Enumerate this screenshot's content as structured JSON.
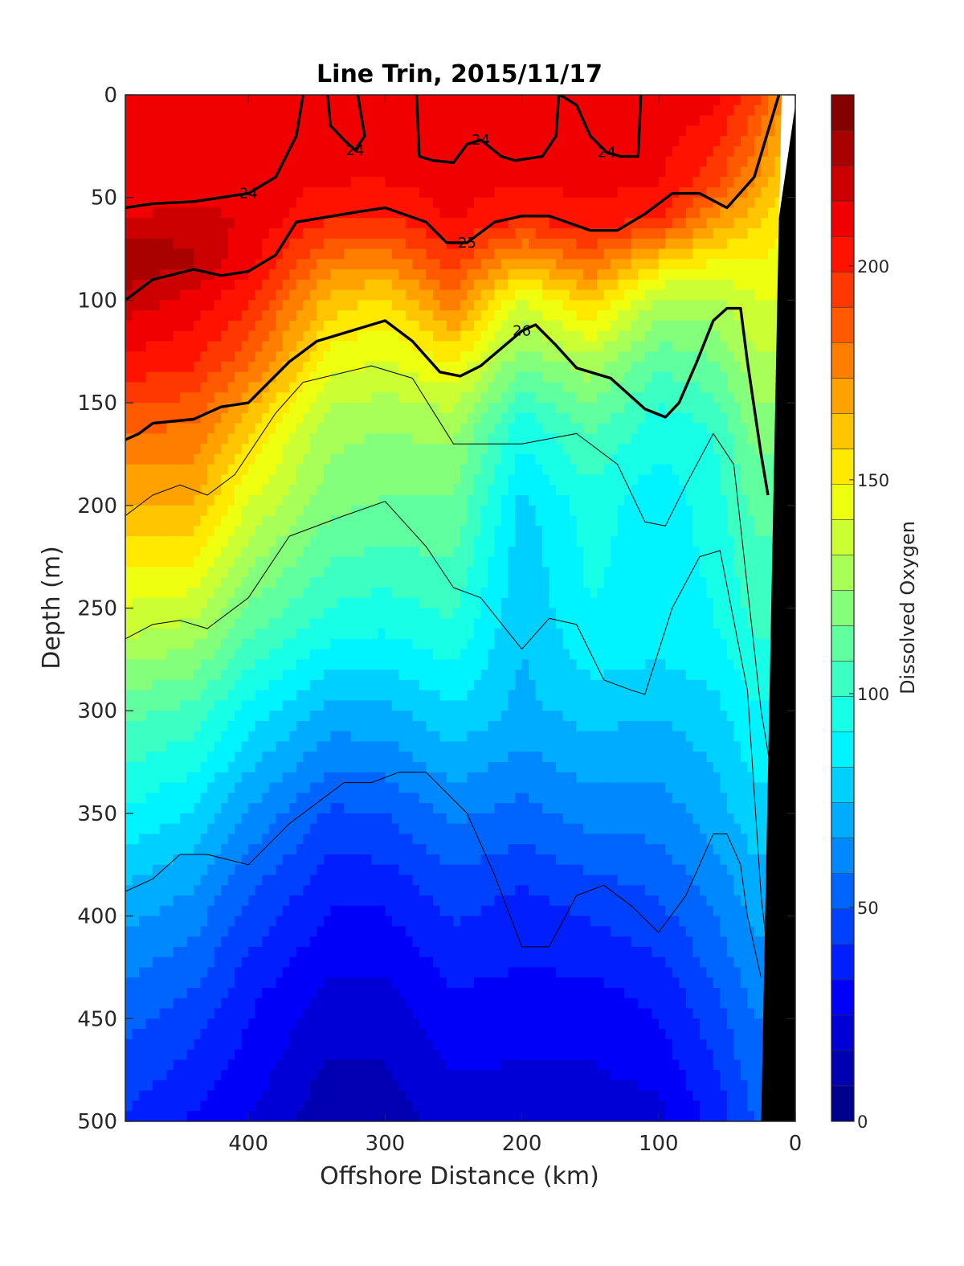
{
  "chart_data": {
    "type": "heatmap",
    "title": "Line Trin, 2015/11/17",
    "xlabel": "Offshore Distance (km)",
    "ylabel": "Depth (m)",
    "xlim": [
      490,
      0
    ],
    "ylim": [
      500,
      0
    ],
    "x_ticks": [
      400,
      300,
      200,
      100,
      0
    ],
    "y_ticks": [
      0,
      50,
      100,
      150,
      200,
      250,
      300,
      350,
      400,
      450,
      500
    ],
    "colorbar": {
      "label": "Dissolved Oxygen",
      "range": [
        0,
        240
      ],
      "ticks": [
        0,
        50,
        100,
        150,
        200
      ],
      "levels": 24,
      "colors": [
        "#00008f",
        "#0000b3",
        "#0000d6",
        "#0000fa",
        "#001eff",
        "#0041ff",
        "#0065ff",
        "#0089ff",
        "#00acff",
        "#00d0ff",
        "#00f4ff",
        "#18ffe7",
        "#3cffc3",
        "#60ff9f",
        "#83ff7c",
        "#a7ff58",
        "#cbff34",
        "#efff10",
        "#ffe900",
        "#ffc500",
        "#ffa200",
        "#ff7e00",
        "#ff5a00",
        "#ff3700",
        "#ff1300",
        "#f00000",
        "#cc0000",
        "#a90000",
        "#850000"
      ]
    },
    "oxygen_profiles": [
      {
        "x": 490,
        "depth": [
          0,
          40,
          60,
          80,
          100,
          130,
          160,
          200,
          260,
          300,
          350,
          390,
          440,
          500
        ],
        "oxygen": [
          210,
          208,
          215,
          232,
          220,
          205,
          185,
          165,
          135,
          110,
          90,
          72,
          55,
          40
        ]
      },
      {
        "x": 440,
        "depth": [
          0,
          40,
          60,
          80,
          100,
          130,
          160,
          200,
          260,
          300,
          350,
          390,
          440,
          500
        ],
        "oxygen": [
          210,
          208,
          218,
          225,
          212,
          200,
          182,
          165,
          130,
          105,
          82,
          65,
          48,
          32
        ]
      },
      {
        "x": 400,
        "depth": [
          0,
          40,
          60,
          80,
          100,
          130,
          160,
          200,
          260,
          300,
          350,
          390,
          440,
          500
        ],
        "oxygen": [
          212,
          210,
          214,
          210,
          200,
          185,
          160,
          140,
          110,
          88,
          65,
          50,
          35,
          25
        ]
      },
      {
        "x": 340,
        "depth": [
          0,
          40,
          60,
          80,
          100,
          130,
          160,
          200,
          260,
          300,
          350,
          390,
          440,
          500
        ],
        "oxygen": [
          212,
          208,
          200,
          180,
          162,
          145,
          128,
          118,
          95,
          72,
          48,
          35,
          22,
          10
        ]
      },
      {
        "x": 300,
        "depth": [
          0,
          40,
          60,
          80,
          100,
          130,
          160,
          200,
          260,
          300,
          350,
          390,
          440,
          500
        ],
        "oxygen": [
          212,
          208,
          198,
          178,
          155,
          140,
          125,
          115,
          92,
          72,
          50,
          35,
          22,
          12
        ]
      },
      {
        "x": 250,
        "depth": [
          0,
          40,
          60,
          80,
          100,
          130,
          160,
          200,
          260,
          300,
          350,
          390,
          440,
          500
        ],
        "oxygen": [
          212,
          210,
          208,
          195,
          180,
          150,
          128,
          115,
          98,
          82,
          60,
          45,
          32,
          20
        ]
      },
      {
        "x": 200,
        "depth": [
          0,
          40,
          60,
          80,
          100,
          130,
          160,
          200,
          260,
          300,
          350,
          390,
          440,
          500
        ],
        "oxygen": [
          212,
          208,
          200,
          170,
          140,
          118,
          95,
          80,
          75,
          72,
          55,
          40,
          30,
          20
        ]
      },
      {
        "x": 150,
        "depth": [
          0,
          40,
          60,
          80,
          100,
          130,
          160,
          200,
          260,
          300,
          350,
          390,
          440,
          500
        ],
        "oxygen": [
          212,
          210,
          205,
          185,
          160,
          130,
          110,
          95,
          90,
          78,
          62,
          45,
          30,
          20
        ]
      },
      {
        "x": 100,
        "depth": [
          0,
          40,
          60,
          80,
          100,
          130,
          160,
          200,
          260,
          300,
          350,
          390,
          440,
          500
        ],
        "oxygen": [
          212,
          208,
          200,
          160,
          130,
          110,
          95,
          85,
          88,
          75,
          62,
          50,
          35,
          22
        ]
      },
      {
        "x": 60,
        "depth": [
          0,
          40,
          60,
          80,
          100,
          130,
          160,
          200,
          260,
          300,
          350,
          390,
          440,
          500
        ],
        "oxygen": [
          210,
          195,
          175,
          150,
          130,
          115,
          100,
          95,
          90,
          80,
          70,
          60,
          48,
          35
        ]
      },
      {
        "x": 30,
        "depth": [
          0,
          40,
          60,
          80,
          100,
          130,
          160,
          200,
          260,
          300,
          350,
          390,
          440,
          500
        ],
        "oxygen": [
          195,
          175,
          160,
          150,
          140,
          130,
          120,
          110,
          100,
          90,
          80,
          70,
          60,
          50
        ]
      },
      {
        "x": 10,
        "depth": [
          0,
          40,
          60,
          80,
          100,
          130,
          160,
          200,
          260,
          300,
          350,
          390,
          440,
          500
        ],
        "oxygen": [
          175,
          160,
          150,
          145,
          140,
          130,
          120,
          110,
          100,
          90,
          80,
          70,
          60,
          50
        ]
      }
    ],
    "density_contours": [
      {
        "level": 24,
        "labeled": true,
        "bold": true,
        "x": [
          490,
          470,
          440,
          420,
          400,
          380,
          365,
          360
        ],
        "depth": [
          55,
          53,
          52,
          50,
          48,
          40,
          20,
          0
        ]
      },
      {
        "level": 24,
        "labeled": true,
        "bold": true,
        "x": [
          342,
          340,
          330,
          322,
          320,
          315,
          320
        ],
        "depth": [
          0,
          15,
          22,
          27,
          25,
          20,
          0
        ]
      },
      {
        "level": 24,
        "labeled": true,
        "bold": true,
        "x": [
          277,
          275,
          265,
          250,
          240,
          230,
          215,
          205,
          185,
          175,
          173
        ],
        "depth": [
          0,
          30,
          32,
          33,
          24,
          22,
          30,
          32,
          30,
          20,
          0
        ]
      },
      {
        "level": 24,
        "labeled": true,
        "bold": true,
        "x": [
          172,
          160,
          150,
          138,
          128,
          115,
          113
        ],
        "depth": [
          0,
          5,
          20,
          28,
          30,
          30,
          0
        ]
      },
      {
        "level": 25,
        "labeled": true,
        "bold": true,
        "x": [
          490,
          470,
          440,
          420,
          400,
          380,
          365,
          320,
          300,
          270,
          255,
          240,
          220,
          200,
          180,
          150,
          130,
          110,
          90,
          70,
          50,
          30,
          12
        ],
        "depth": [
          100,
          90,
          85,
          88,
          86,
          78,
          62,
          57,
          55,
          62,
          72,
          72,
          62,
          59,
          59,
          66,
          66,
          58,
          48,
          48,
          55,
          40,
          0
        ]
      },
      {
        "level": 26,
        "labeled": true,
        "bold": true,
        "x": [
          490,
          480,
          470,
          440,
          420,
          400,
          370,
          350,
          310,
          300,
          280,
          260,
          245,
          230,
          200,
          190,
          175,
          160,
          135,
          110,
          95,
          85,
          72,
          60,
          50,
          40,
          35,
          25,
          20
        ],
        "depth": [
          168,
          165,
          160,
          158,
          152,
          150,
          130,
          120,
          112,
          110,
          120,
          135,
          137,
          132,
          115,
          112,
          122,
          133,
          138,
          153,
          157,
          150,
          130,
          110,
          104,
          104,
          130,
          175,
          195
        ]
      },
      {
        "level": 26.5,
        "labeled": false,
        "bold": false,
        "x": [
          490,
          470,
          450,
          430,
          410,
          380,
          360,
          310,
          280,
          250,
          200,
          160,
          130,
          110,
          95,
          80,
          60,
          45,
          25,
          15
        ],
        "depth": [
          205,
          195,
          190,
          195,
          185,
          155,
          140,
          132,
          138,
          170,
          170,
          165,
          180,
          208,
          210,
          190,
          165,
          180,
          300,
          340
        ]
      },
      {
        "level": 26.8,
        "labeled": false,
        "bold": false,
        "x": [
          490,
          470,
          450,
          430,
          400,
          370,
          330,
          300,
          270,
          250,
          230,
          200,
          180,
          160,
          140,
          120,
          110,
          90,
          70,
          55,
          35,
          25,
          15
        ],
        "depth": [
          265,
          258,
          256,
          260,
          245,
          215,
          205,
          198,
          220,
          240,
          245,
          270,
          255,
          258,
          285,
          290,
          292,
          250,
          225,
          222,
          290,
          390,
          450
        ]
      },
      {
        "level": 27.0,
        "labeled": false,
        "bold": false,
        "x": [
          490,
          470,
          450,
          430,
          400,
          370,
          330,
          310,
          290,
          270,
          240,
          220,
          200,
          180,
          160,
          140,
          120,
          100,
          80,
          70,
          60,
          50,
          40,
          35,
          25
        ],
        "depth": [
          388,
          382,
          370,
          370,
          375,
          355,
          335,
          335,
          330,
          330,
          350,
          380,
          415,
          415,
          390,
          385,
          395,
          408,
          390,
          375,
          360,
          360,
          375,
          400,
          430
        ]
      }
    ],
    "bottom_mask": {
      "x_top": 10,
      "x_bottom": 25,
      "depth": [
        0,
        500
      ]
    }
  }
}
